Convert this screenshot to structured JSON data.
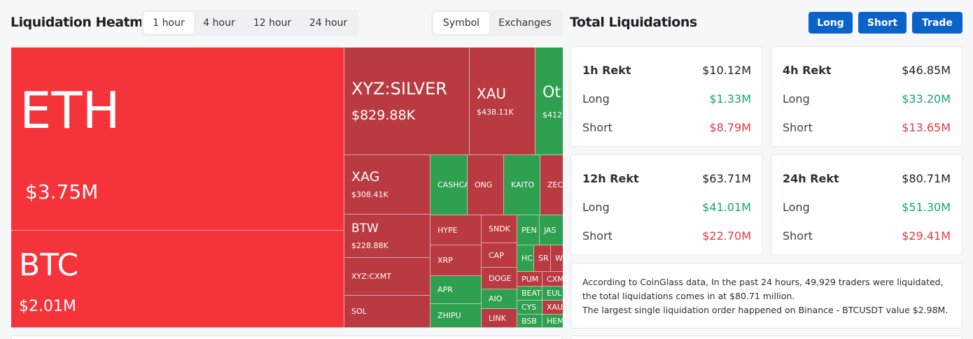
{
  "heatmap": {
    "title": "Liquidation Heatmap",
    "time_options": [
      "1 hour",
      "4 hour",
      "12 hour",
      "24 hour"
    ],
    "selected_time": "1 hour",
    "group_options": [
      "Symbol",
      "Exchanges"
    ],
    "selected_group": "Symbol",
    "cells": {
      "eth": {
        "name": "ETH",
        "value": "$3.75M"
      },
      "btc": {
        "name": "BTC",
        "value": "$2.01M"
      },
      "xyz_silver": {
        "name": "XYZ:SILVER",
        "value": "$829.88K"
      },
      "xau": {
        "name": "XAU",
        "value": "$438.11K"
      },
      "others": {
        "name": "Ot",
        "value": "$412."
      },
      "xag": {
        "name": "XAG",
        "value": "$308.41K"
      },
      "btw": {
        "name": "BTW",
        "value": "$228.88K"
      },
      "xyz_cxmt": {
        "name": "XYZ:CXMT"
      },
      "sol": {
        "name": "SOL"
      },
      "cashca": {
        "name": "CASHCA"
      },
      "ong": {
        "name": "ONG"
      },
      "kaito": {
        "name": "KAITO"
      },
      "zec": {
        "name": "ZEC"
      },
      "hype": {
        "name": "HYPE"
      },
      "sndk": {
        "name": "SNDK"
      },
      "pen": {
        "name": "PEN"
      },
      "jas": {
        "name": "JAS"
      },
      "xrp": {
        "name": "XRP"
      },
      "cap": {
        "name": "CAP"
      },
      "hc": {
        "name": "HC"
      },
      "sr": {
        "name": "SR"
      },
      "w": {
        "name": "W"
      },
      "doge": {
        "name": "DOGE"
      },
      "pum": {
        "name": "PUM"
      },
      "cxm": {
        "name": "CXM"
      },
      "apr": {
        "name": "APR"
      },
      "beat": {
        "name": "BEAT"
      },
      "eul": {
        "name": "EUL"
      },
      "aio": {
        "name": "AIO"
      },
      "cys": {
        "name": "CYS"
      },
      "xau2": {
        "name": "XAU"
      },
      "zhipu": {
        "name": "ZHIPU"
      },
      "link": {
        "name": "LINK"
      },
      "bsb": {
        "name": "BSB"
      },
      "hem": {
        "name": "HEM"
      }
    }
  },
  "total": {
    "title": "Total Liquidations",
    "buttons": {
      "long": "Long",
      "short": "Short",
      "trade": "Trade"
    },
    "cards": [
      {
        "label": "1h Rekt",
        "total": "$10.12M",
        "long_label": "Long",
        "long": "$1.33M",
        "short_label": "Short",
        "short": "$8.79M"
      },
      {
        "label": "4h Rekt",
        "total": "$46.85M",
        "long_label": "Long",
        "long": "$33.20M",
        "short_label": "Short",
        "short": "$13.65M"
      },
      {
        "label": "12h Rekt",
        "total": "$63.71M",
        "long_label": "Long",
        "long": "$41.01M",
        "short_label": "Short",
        "short": "$22.70M"
      },
      {
        "label": "24h Rekt",
        "total": "$80.71M",
        "long_label": "Long",
        "long": "$51.30M",
        "short_label": "Short",
        "short": "$29.41M"
      }
    ],
    "info_line1": "According to CoinGlass data, In the past 24 hours, 49,929 traders were liquidated, the total liquidations comes in at $80.71 million.",
    "info_line2": "The largest single liquidation order happened on Binance - BTCUSDT value $2.98M."
  },
  "colors": {
    "accent": "#0a63c9",
    "long": "#16a37a",
    "short": "#e23a45",
    "heat_red": "#f5333b",
    "heat_dark_red": "#b93a40",
    "heat_green": "#2ea04f"
  }
}
